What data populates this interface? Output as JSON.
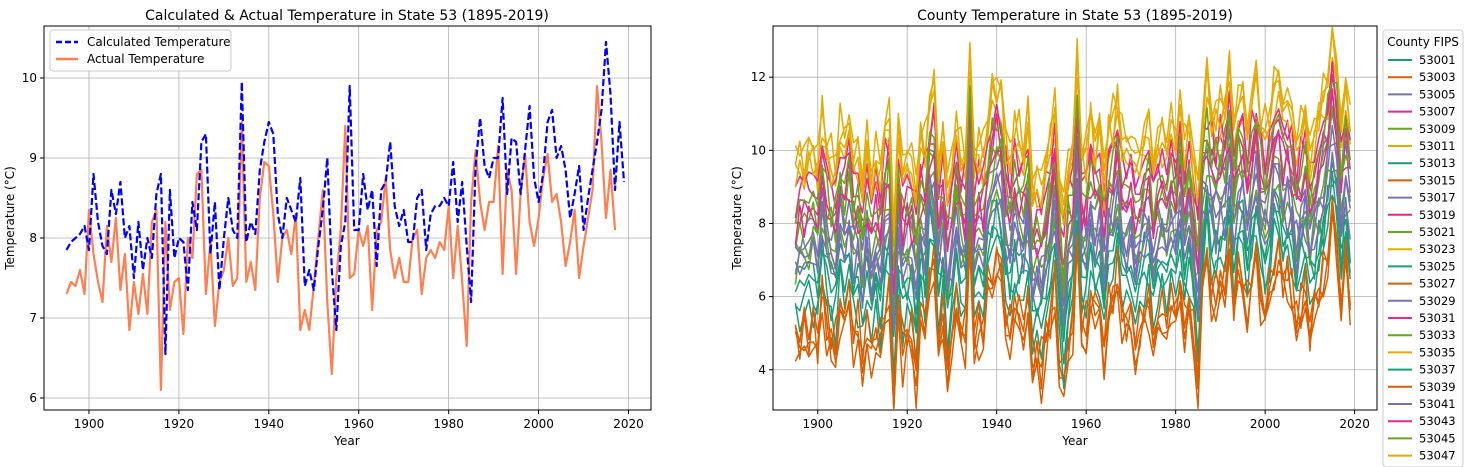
{
  "chart_data": [
    {
      "type": "line",
      "title": "Calculated & Actual Temperature in State 53 (1895-2019)",
      "xlabel": "Year",
      "ylabel": "Temperature (°C)",
      "xlim": [
        1890,
        2025
      ],
      "ylim": [
        5.85,
        10.65
      ],
      "xticks": [
        1900,
        1920,
        1940,
        1960,
        1980,
        2000,
        2020
      ],
      "yticks": [
        6,
        7,
        8,
        9,
        10
      ],
      "grid": true,
      "legend_position": "top-left",
      "x_start": 1895,
      "series": [
        {
          "name": "Calculated Temperature",
          "color": "#0000ff",
          "style": "dashed",
          "values": [
            7.85,
            7.95,
            8.0,
            8.05,
            8.15,
            7.85,
            8.8,
            8.2,
            7.9,
            7.8,
            8.6,
            8.3,
            8.7,
            8.0,
            8.15,
            7.5,
            8.2,
            7.6,
            8.0,
            7.75,
            8.55,
            8.8,
            6.55,
            8.6,
            7.75,
            8.0,
            7.95,
            7.35,
            8.45,
            8.1,
            9.2,
            9.3,
            7.8,
            8.45,
            7.35,
            8.0,
            8.5,
            8.1,
            8.0,
            9.95,
            7.95,
            8.2,
            8.05,
            8.85,
            9.2,
            9.45,
            9.3,
            8.3,
            8.0,
            8.5,
            8.35,
            8.2,
            8.75,
            7.4,
            7.6,
            7.35,
            7.9,
            8.35,
            9.0,
            7.6,
            6.85,
            7.9,
            8.2,
            9.9,
            8.1,
            8.1,
            8.8,
            8.35,
            8.6,
            7.65,
            8.6,
            8.7,
            9.2,
            8.4,
            8.15,
            8.35,
            7.95,
            7.95,
            8.5,
            8.6,
            7.85,
            8.3,
            8.4,
            8.4,
            8.5,
            8.4,
            8.95,
            8.2,
            8.7,
            7.9,
            7.2,
            8.9,
            9.5,
            8.9,
            8.75,
            9.0,
            9.0,
            9.75,
            8.55,
            9.25,
            9.2,
            8.55,
            9.1,
            9.65,
            8.75,
            8.45,
            8.8,
            9.45,
            9.6,
            9.0,
            9.15,
            8.85,
            8.25,
            8.55,
            8.9,
            8.1,
            8.5,
            8.85,
            9.2,
            9.6,
            10.45,
            9.8,
            8.6,
            9.45,
            8.7
          ]
        },
        {
          "name": "Actual Temperature",
          "color": "#ff7f50",
          "style": "solid",
          "values": [
            7.3,
            7.45,
            7.4,
            7.6,
            7.3,
            8.35,
            7.8,
            7.45,
            7.2,
            8.15,
            7.7,
            8.25,
            7.35,
            7.8,
            6.85,
            7.45,
            7.05,
            7.55,
            7.05,
            8.2,
            8.35,
            6.1,
            8.2,
            7.1,
            7.45,
            7.5,
            6.8,
            8.0,
            7.75,
            8.8,
            8.85,
            7.3,
            7.95,
            6.9,
            7.45,
            7.6,
            8.0,
            7.4,
            7.5,
            9.45,
            7.45,
            7.7,
            7.35,
            8.5,
            8.95,
            8.9,
            8.3,
            7.45,
            8.0,
            8.1,
            7.8,
            8.3,
            6.85,
            7.1,
            6.85,
            7.4,
            8.0,
            8.6,
            7.2,
            6.3,
            7.5,
            8.1,
            9.4,
            7.5,
            7.55,
            8.1,
            7.9,
            8.15,
            7.1,
            8.1,
            8.2,
            8.75,
            7.85,
            7.5,
            7.75,
            7.45,
            7.45,
            8.0,
            8.1,
            7.3,
            7.75,
            7.85,
            7.75,
            7.95,
            7.85,
            8.4,
            7.5,
            8.15,
            7.45,
            6.65,
            8.45,
            9.1,
            8.45,
            8.1,
            8.45,
            8.45,
            9.15,
            7.55,
            8.85,
            8.6,
            7.55,
            8.55,
            9.05,
            8.2,
            7.9,
            8.25,
            8.75,
            9.05,
            8.45,
            8.55,
            8.2,
            7.65,
            7.95,
            8.35,
            7.5,
            7.9,
            8.25,
            8.6,
            9.9,
            9.2,
            8.25,
            8.85,
            8.1
          ]
        }
      ]
    },
    {
      "type": "line",
      "title": "County Temperature in State 53 (1895-2019)",
      "xlabel": "Year",
      "ylabel": "Temperature (°C)",
      "xlim": [
        1890,
        2025
      ],
      "ylim": [
        2.9,
        13.4
      ],
      "xticks": [
        1900,
        1920,
        1940,
        1960,
        1980,
        2000,
        2020
      ],
      "yticks": [
        4,
        6,
        8,
        10,
        12
      ],
      "grid": true,
      "legend_title": "County FIPS",
      "legend_position": "outside-right",
      "x_start": 1895,
      "series_names": [
        "53001",
        "53003",
        "53005",
        "53007",
        "53009",
        "53011",
        "53013",
        "53015",
        "53017",
        "53019",
        "53021",
        "53023",
        "53025",
        "53027",
        "53029",
        "53031",
        "53033",
        "53035",
        "53037",
        "53039",
        "53041",
        "53043",
        "53045",
        "53047"
      ],
      "color_cycle": [
        "#1b9e77",
        "#d95f02",
        "#7570b3",
        "#e7298a",
        "#66a61e",
        "#e6ab02"
      ],
      "series_base": [
        7.2,
        5.4,
        8.5,
        9.5,
        8.2,
        10.0,
        6.6,
        5.2,
        8.0,
        9.0,
        7.6,
        10.5,
        6.2,
        5.8,
        7.8,
        9.8,
        8.8,
        10.2,
        7.0,
        5.6,
        7.4,
        8.7,
        9.3,
        10.7
      ]
    }
  ]
}
